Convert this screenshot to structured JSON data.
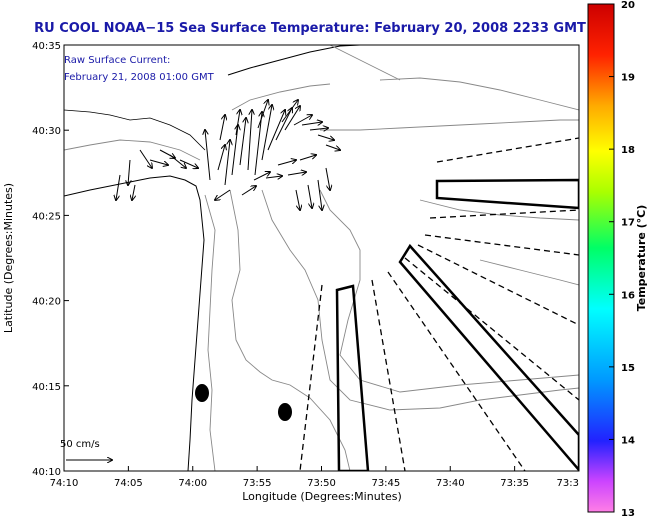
{
  "colors": {
    "title": "#1a1aa8",
    "contour": "#888888",
    "land": "#ffffff"
  },
  "chart_data": {
    "type": "map",
    "title": "RU COOL  NOAA−15  Sea Surface Temperature:  February 20, 2008 2233 GMT",
    "annotation_line1": "Raw Surface Current:",
    "annotation_line2": "February 21, 2008 01:00 GMT",
    "xlabel": "Longitude (Degrees:Minutes)",
    "ylabel": "Latitude (Degrees:Minutes)",
    "x_ticks": [
      "74:10",
      "74:05",
      "74:00",
      "73:55",
      "73:50",
      "73:45",
      "73:40",
      "73:35",
      "73:3"
    ],
    "y_ticks": [
      "40:35",
      "40:30",
      "40:25",
      "40:20",
      "40:15",
      "40:10"
    ],
    "scale_label": "50 cm/s",
    "colorbar": {
      "label": "Temperature (°C)",
      "min": 13,
      "max": 20,
      "ticks": [
        "20",
        "19",
        "18",
        "17",
        "16",
        "15",
        "14",
        "13"
      ]
    }
  }
}
